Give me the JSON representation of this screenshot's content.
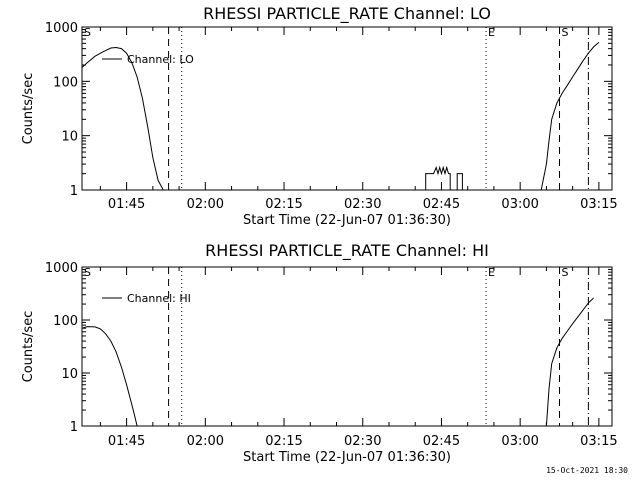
{
  "footer_text": "15-Oct-2021 18:30",
  "chart_data": [
    {
      "type": "line",
      "title": "RHESSI PARTICLE_RATE Channel: LO",
      "xlabel": "Start Time (22-Jun-07 01:36:30)",
      "ylabel": "Counts/sec",
      "yscale": "log",
      "ylim": [
        1,
        1000
      ],
      "xlim": [
        "01:36:30",
        "03:17:30"
      ],
      "x_ticks": [
        "01:45",
        "02:00",
        "02:15",
        "02:30",
        "02:45",
        "03:00",
        "03:15"
      ],
      "y_ticks": [
        "1",
        "10",
        "100",
        "1000"
      ],
      "legend": "Channel: LO",
      "series": [
        {
          "name": "Channel: LO",
          "segments": [
            [
              [
                "01:36:30",
                180
              ],
              [
                "01:37:30",
                220
              ],
              [
                "01:39:00",
                290
              ],
              [
                "01:40:30",
                350
              ],
              [
                "01:42:00",
                410
              ],
              [
                "01:43:00",
                420
              ],
              [
                "01:44:00",
                400
              ],
              [
                "01:45:00",
                330
              ],
              [
                "01:46:00",
                220
              ],
              [
                "01:47:00",
                120
              ],
              [
                "01:48:00",
                50
              ],
              [
                "01:49:00",
                15
              ],
              [
                "01:50:00",
                4
              ],
              [
                "01:51:00",
                1.5
              ],
              [
                "01:52:00",
                1
              ]
            ],
            [
              [
                "02:42:00",
                1
              ],
              [
                "02:42:00",
                2
              ],
              [
                "02:43:30",
                2
              ],
              [
                "02:44:00",
                2.6
              ],
              [
                "02:44:20",
                2
              ],
              [
                "02:44:40",
                2.6
              ],
              [
                "02:45:00",
                2
              ],
              [
                "02:45:20",
                2.6
              ],
              [
                "02:45:40",
                2
              ],
              [
                "02:46:00",
                2.6
              ],
              [
                "02:46:20",
                2
              ],
              [
                "02:46:40",
                2
              ],
              [
                "02:46:40",
                1
              ],
              [
                "02:48:00",
                1
              ],
              [
                "02:48:00",
                2
              ],
              [
                "02:49:00",
                2
              ],
              [
                "02:49:00",
                1
              ]
            ],
            [
              [
                "03:04:00",
                1
              ],
              [
                "03:05:00",
                3
              ],
              [
                "03:05:30",
                8
              ],
              [
                "03:06:00",
                20
              ],
              [
                "03:07:00",
                40
              ],
              [
                "03:08:00",
                60
              ],
              [
                "03:09:00",
                85
              ],
              [
                "03:10:00",
                120
              ],
              [
                "03:11:00",
                170
              ],
              [
                "03:12:00",
                240
              ],
              [
                "03:13:00",
                330
              ],
              [
                "03:14:00",
                430
              ],
              [
                "03:15:00",
                520
              ]
            ]
          ]
        }
      ],
      "markers": [
        {
          "time": "01:36:30",
          "style": "dotted",
          "label": "S"
        },
        {
          "time": "01:53:00",
          "style": "dashed",
          "label": ""
        },
        {
          "time": "01:55:30",
          "style": "dotted",
          "label": ""
        },
        {
          "time": "02:53:30",
          "style": "dotted",
          "label": "E"
        },
        {
          "time": "03:07:30",
          "style": "dashed",
          "label": "S"
        },
        {
          "time": "03:13:00",
          "style": "dashdot",
          "label": ""
        }
      ]
    },
    {
      "type": "line",
      "title": "RHESSI PARTICLE_RATE Channel: HI",
      "xlabel": "Start Time (22-Jun-07 01:36:30)",
      "ylabel": "Counts/sec",
      "yscale": "log",
      "ylim": [
        1,
        1000
      ],
      "xlim": [
        "01:36:30",
        "03:17:30"
      ],
      "x_ticks": [
        "01:45",
        "02:00",
        "02:15",
        "02:30",
        "02:45",
        "03:00",
        "03:15"
      ],
      "y_ticks": [
        "1",
        "10",
        "100",
        "1000"
      ],
      "legend": "Channel: HI",
      "series": [
        {
          "name": "Channel: HI",
          "segments": [
            [
              [
                "01:36:30",
                70
              ],
              [
                "01:37:30",
                75
              ],
              [
                "01:39:00",
                74
              ],
              [
                "01:40:00",
                68
              ],
              [
                "01:41:00",
                55
              ],
              [
                "01:42:00",
                40
              ],
              [
                "01:43:00",
                25
              ],
              [
                "01:44:00",
                13
              ],
              [
                "01:45:00",
                6
              ],
              [
                "01:46:00",
                2.5
              ],
              [
                "01:46:30",
                1.6
              ],
              [
                "01:47:00",
                1
              ]
            ],
            [
              [
                "03:05:00",
                1
              ],
              [
                "03:05:30",
                5
              ],
              [
                "03:06:00",
                15
              ],
              [
                "03:07:00",
                30
              ],
              [
                "03:08:00",
                45
              ],
              [
                "03:09:00",
                62
              ],
              [
                "03:10:00",
                85
              ],
              [
                "03:11:00",
                115
              ],
              [
                "03:12:00",
                155
              ],
              [
                "03:13:00",
                210
              ],
              [
                "03:14:00",
                260
              ]
            ]
          ]
        }
      ],
      "markers": [
        {
          "time": "01:36:30",
          "style": "dotted",
          "label": "S"
        },
        {
          "time": "01:53:00",
          "style": "dashed",
          "label": ""
        },
        {
          "time": "01:55:30",
          "style": "dotted",
          "label": ""
        },
        {
          "time": "02:53:30",
          "style": "dotted",
          "label": "E"
        },
        {
          "time": "03:07:30",
          "style": "dashed",
          "label": "S"
        },
        {
          "time": "03:13:00",
          "style": "dashdot",
          "label": ""
        }
      ]
    }
  ]
}
